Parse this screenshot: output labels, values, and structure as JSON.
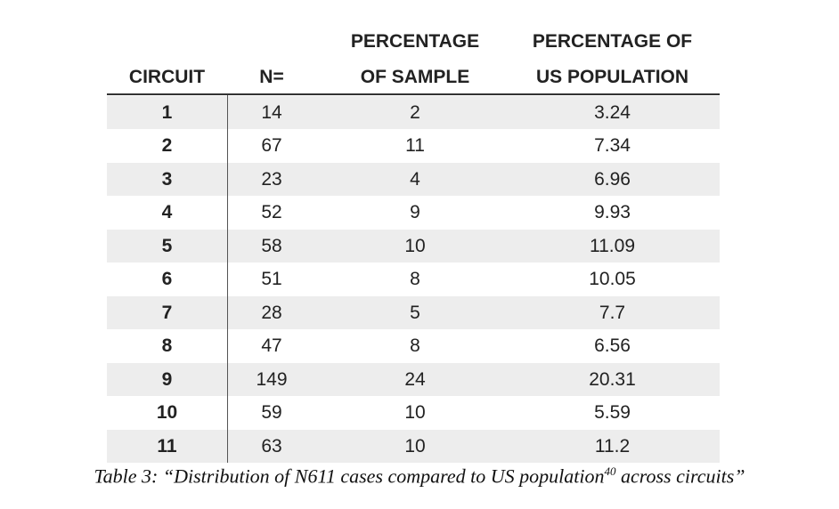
{
  "table": {
    "headers": [
      [
        "CIRCUIT"
      ],
      [
        "N="
      ],
      [
        "PERCENTAGE",
        "OF SAMPLE"
      ],
      [
        "PERCENTAGE OF",
        "US POPULATION"
      ]
    ],
    "rows": [
      [
        "1",
        "14",
        "2",
        "3.24"
      ],
      [
        "2",
        "67",
        "11",
        "7.34"
      ],
      [
        "3",
        "23",
        "4",
        "6.96"
      ],
      [
        "4",
        "52",
        "9",
        "9.93"
      ],
      [
        "5",
        "58",
        "10",
        "11.09"
      ],
      [
        "6",
        "51",
        "8",
        "10.05"
      ],
      [
        "7",
        "28",
        "5",
        "7.7"
      ],
      [
        "8",
        "47",
        "8",
        "6.56"
      ],
      [
        "9",
        "149",
        "24",
        "20.31"
      ],
      [
        "10",
        "59",
        "10",
        "5.59"
      ],
      [
        "11",
        "63",
        "10",
        "11.2"
      ]
    ]
  },
  "caption": {
    "before": "Table 3: “Distribution of N611 cases compared to US population",
    "superscript": "40",
    "after": " across circuits”"
  }
}
